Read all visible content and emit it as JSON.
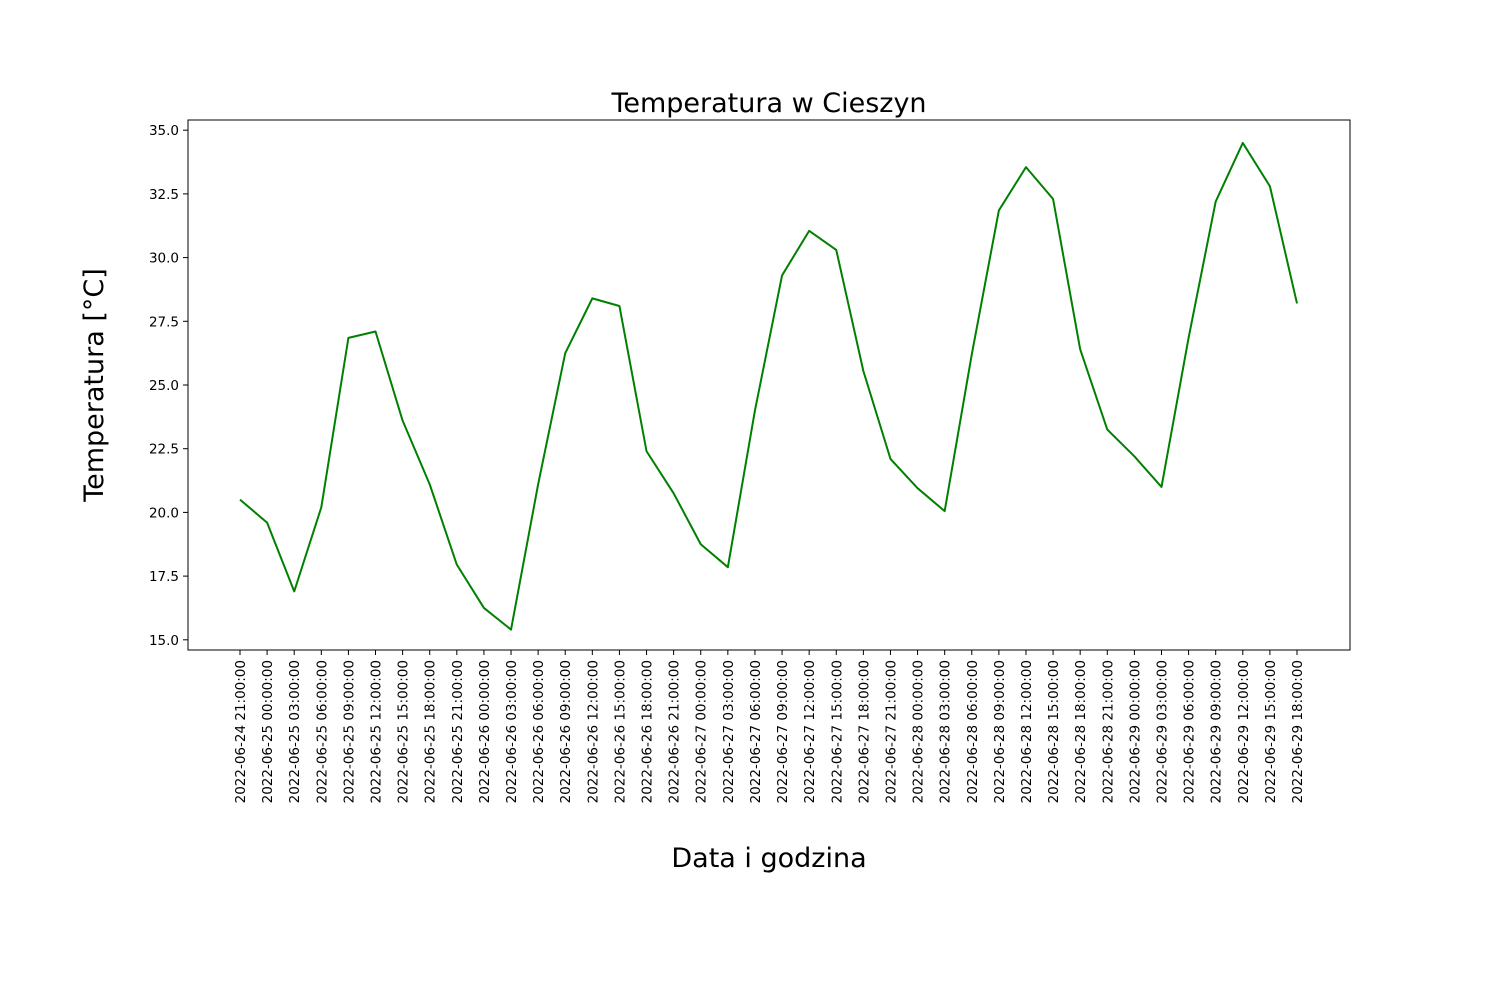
{
  "chart_data": {
    "type": "line",
    "title": "Temperatura w Cieszyn",
    "xlabel": "Data i godzina",
    "ylabel": "Temperatura [°C]",
    "ylim": [
      14.6,
      35.4
    ],
    "yticks": [
      "15.0",
      "17.5",
      "20.0",
      "22.5",
      "25.0",
      "27.5",
      "30.0",
      "32.5",
      "35.0"
    ],
    "grid": false,
    "line_color": "#008000",
    "x": [
      "2022-06-24 21:00:00",
      "2022-06-25 00:00:00",
      "2022-06-25 03:00:00",
      "2022-06-25 06:00:00",
      "2022-06-25 09:00:00",
      "2022-06-25 12:00:00",
      "2022-06-25 15:00:00",
      "2022-06-25 18:00:00",
      "2022-06-25 21:00:00",
      "2022-06-26 00:00:00",
      "2022-06-26 03:00:00",
      "2022-06-26 06:00:00",
      "2022-06-26 09:00:00",
      "2022-06-26 12:00:00",
      "2022-06-26 15:00:00",
      "2022-06-26 18:00:00",
      "2022-06-26 21:00:00",
      "2022-06-27 00:00:00",
      "2022-06-27 03:00:00",
      "2022-06-27 06:00:00",
      "2022-06-27 09:00:00",
      "2022-06-27 12:00:00",
      "2022-06-27 15:00:00",
      "2022-06-27 18:00:00",
      "2022-06-27 21:00:00",
      "2022-06-28 00:00:00",
      "2022-06-28 03:00:00",
      "2022-06-28 06:00:00",
      "2022-06-28 09:00:00",
      "2022-06-28 12:00:00",
      "2022-06-28 15:00:00",
      "2022-06-28 18:00:00",
      "2022-06-28 21:00:00",
      "2022-06-29 00:00:00",
      "2022-06-29 03:00:00",
      "2022-06-29 06:00:00",
      "2022-06-29 09:00:00",
      "2022-06-29 12:00:00",
      "2022-06-29 15:00:00",
      "2022-06-29 18:00:00"
    ],
    "values": [
      20.5,
      19.6,
      16.9,
      20.2,
      26.85,
      27.1,
      23.6,
      21.1,
      17.95,
      16.25,
      15.4,
      21.1,
      26.25,
      28.4,
      28.1,
      22.4,
      20.75,
      18.75,
      17.85,
      24.0,
      29.3,
      31.05,
      30.3,
      25.55,
      22.1,
      20.95,
      20.05,
      26.2,
      31.85,
      33.55,
      32.3,
      26.4,
      23.25,
      22.2,
      21.0,
      26.85,
      32.2,
      34.5,
      32.8,
      28.2
    ]
  }
}
